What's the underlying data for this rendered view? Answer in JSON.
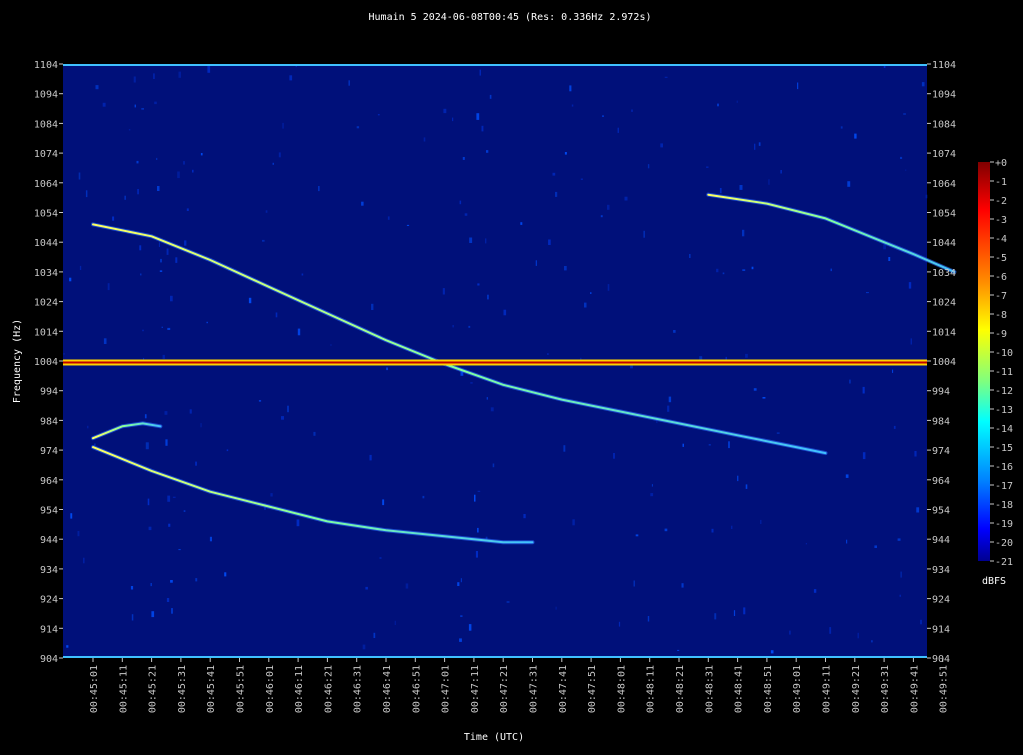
{
  "chart_data": {
    "type": "heatmap",
    "title": "Humain 5 2024-06-08T00:45 (Res: 0.336Hz 2.972s)",
    "xlabel": "Time (UTC)",
    "ylabel": "Frequency (Hz)",
    "ylim": [
      904,
      1104
    ],
    "y_ticks": [
      "904",
      "914",
      "924",
      "934",
      "944",
      "954",
      "964",
      "974",
      "984",
      "994",
      "1004",
      "1014",
      "1024",
      "1034",
      "1044",
      "1054",
      "1064",
      "1074",
      "1084",
      "1094",
      "1104"
    ],
    "x_ticks": [
      "00:45:01",
      "00:45:11",
      "00:45:21",
      "00:45:31",
      "00:45:41",
      "00:45:51",
      "00:46:01",
      "00:46:11",
      "00:46:21",
      "00:46:31",
      "00:46:41",
      "00:46:51",
      "00:47:01",
      "00:47:11",
      "00:47:21",
      "00:47:31",
      "00:47:41",
      "00:47:51",
      "00:48:01",
      "00:48:11",
      "00:48:21",
      "00:48:31",
      "00:48:41",
      "00:48:51",
      "00:49:01",
      "00:49:11",
      "00:49:21",
      "00:49:31",
      "00:49:41",
      "00:49:51"
    ],
    "colorbar": {
      "label": "dBFS",
      "ticks": [
        "+0",
        "-1",
        "-2",
        "-3",
        "-4",
        "-5",
        "-6",
        "-7",
        "-8",
        "-9",
        "-10",
        "-11",
        "-12",
        "-13",
        "-14",
        "-15",
        "-16",
        "-17",
        "-18",
        "-19",
        "-20",
        "-21"
      ]
    },
    "background_color": "#00107a",
    "carrier_frequency_hz": 1003.5,
    "traces": [
      {
        "name": "",
        "points": [
          [
            "00:45:01",
            1050
          ],
          [
            "00:45:21",
            1046
          ],
          [
            "00:45:41",
            1038
          ],
          [
            "00:46:01",
            1029
          ],
          [
            "00:46:21",
            1020
          ],
          [
            "00:46:41",
            1011
          ],
          [
            "00:47:01",
            1003
          ],
          [
            "00:47:21",
            996
          ],
          [
            "00:47:41",
            991
          ],
          [
            "00:48:01",
            987
          ],
          [
            "00:48:21",
            983
          ],
          [
            "00:48:41",
            979
          ],
          [
            "00:49:01",
            975
          ],
          [
            "00:49:11",
            973
          ]
        ]
      },
      {
        "name": "",
        "points": [
          [
            "00:48:31",
            1060
          ],
          [
            "00:48:51",
            1057
          ],
          [
            "00:49:11",
            1052
          ],
          [
            "00:49:31",
            1044
          ],
          [
            "00:49:41",
            1040
          ],
          [
            "00:49:55",
            1034
          ]
        ]
      },
      {
        "name": "",
        "points": [
          [
            "00:45:01",
            975
          ],
          [
            "00:45:21",
            967
          ],
          [
            "00:45:41",
            960
          ],
          [
            "00:46:01",
            955
          ],
          [
            "00:46:21",
            950
          ],
          [
            "00:46:41",
            947
          ],
          [
            "00:47:01",
            945
          ],
          [
            "00:47:21",
            943
          ],
          [
            "00:47:31",
            943
          ]
        ]
      },
      {
        "name": "",
        "points": [
          [
            "00:45:01",
            978
          ],
          [
            "00:45:11",
            982
          ],
          [
            "00:45:18",
            983
          ],
          [
            "00:45:24",
            982
          ]
        ]
      }
    ]
  }
}
